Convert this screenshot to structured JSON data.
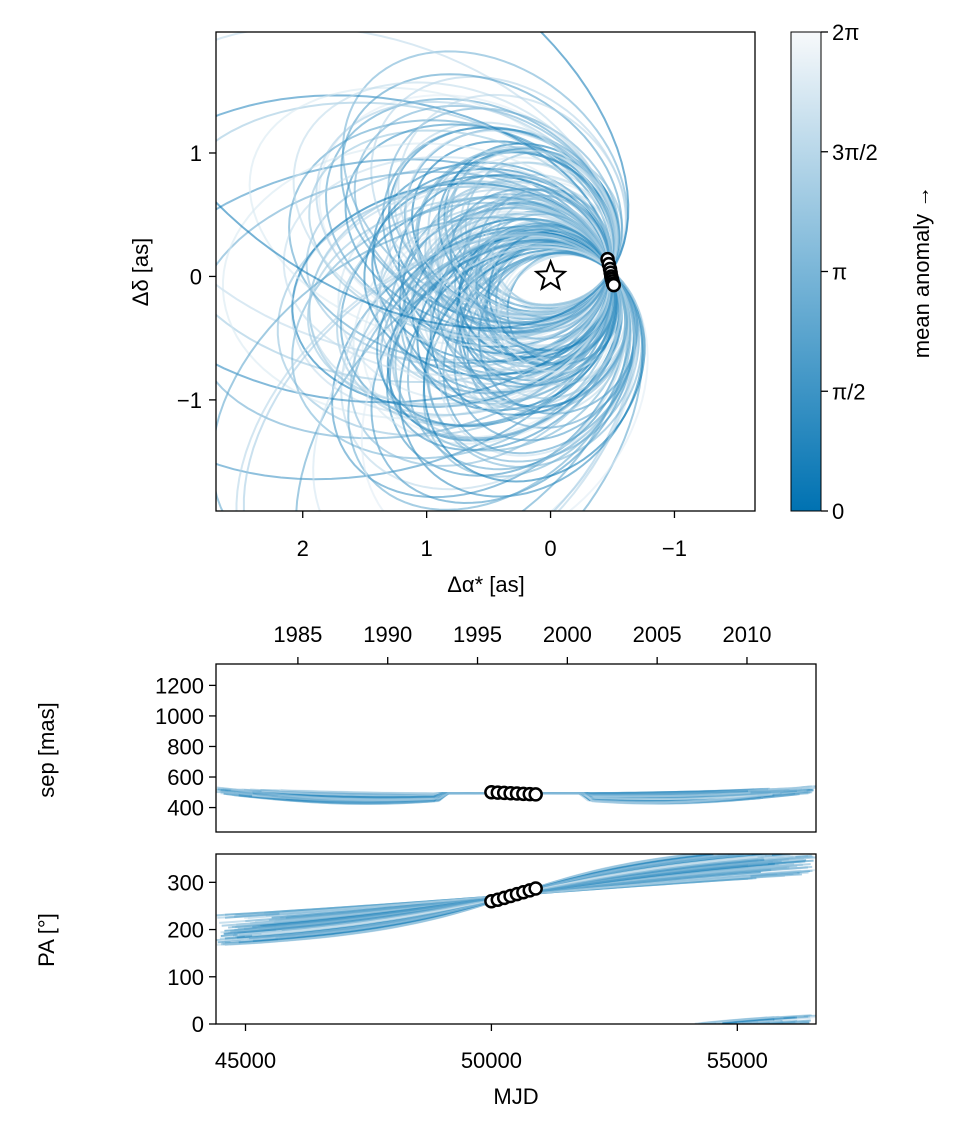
{
  "chart_data": [
    {
      "type": "line",
      "panel": "sky-orbit",
      "xlabel": "Δα* [as]",
      "ylabel": "Δδ [as]",
      "xlim": [
        2.7,
        -1.65
      ],
      "ylim": [
        -1.9,
        1.98
      ],
      "x_ticks": [
        2,
        1,
        0,
        -1
      ],
      "x_tick_labels": [
        "2",
        "1",
        "0",
        "−1"
      ],
      "y_ticks": [
        1,
        0,
        -1
      ],
      "y_tick_labels": [
        "1",
        "0",
        "−1"
      ],
      "star": {
        "x": 0,
        "y": 0,
        "marker": "star"
      },
      "observations": {
        "x": [
          -0.46,
          -0.47,
          -0.48,
          -0.485,
          -0.49,
          -0.495,
          -0.5,
          -0.505,
          -0.51
        ],
        "y": [
          0.14,
          0.1,
          0.06,
          0.03,
          0.0,
          -0.02,
          -0.04,
          -0.06,
          -0.07
        ]
      },
      "series_count": 150,
      "note": "Posterior orbit draws, colored by mean anomaly; all pass through the observed points near Δα*≈-0.5, Δδ≈0"
    },
    {
      "type": "line",
      "panel": "separation",
      "ylabel": "sep [mas]",
      "xlim": [
        44400,
        56600
      ],
      "ylim": [
        240,
        1340
      ],
      "y_ticks": [
        400,
        600,
        800,
        1000,
        1200
      ],
      "y_tick_labels": [
        "400",
        "600",
        "800",
        "1000",
        "1200"
      ],
      "top_axis_ticks": [
        1985,
        1990,
        1995,
        2000,
        2005,
        2010
      ],
      "top_axis_tick_labels": [
        "1985",
        "1990",
        "1995",
        "2000",
        "2005",
        "2010"
      ],
      "observations": {
        "mjd": [
          50000,
          50130,
          50260,
          50390,
          50520,
          50650,
          50780,
          50900
        ],
        "sep": [
          500,
          498,
          496,
          494,
          492,
          490,
          488,
          486
        ]
      }
    },
    {
      "type": "line",
      "panel": "position-angle",
      "xlabel": "MJD",
      "ylabel": "PA [°]",
      "xlim": [
        44400,
        56600
      ],
      "ylim": [
        0,
        360
      ],
      "x_ticks": [
        45000,
        50000,
        55000
      ],
      "x_tick_labels": [
        "45000",
        "50000",
        "55000"
      ],
      "y_ticks": [
        0,
        100,
        200,
        300
      ],
      "y_tick_labels": [
        "0",
        "100",
        "200",
        "300"
      ],
      "observations": {
        "mjd": [
          50000,
          50130,
          50260,
          50390,
          50520,
          50650,
          50780,
          50900
        ],
        "pa": [
          260,
          263,
          267,
          271,
          275,
          279,
          283,
          287
        ]
      }
    }
  ],
  "colorbar": {
    "label": "mean anomaly →",
    "range": [
      0,
      6.2832
    ],
    "ticks": [
      0,
      1.5708,
      3.1416,
      4.7124,
      6.2832
    ],
    "tick_labels": [
      "0",
      "π/2",
      "π",
      "3π/2",
      "2π"
    ],
    "color_low": "#0072b2",
    "color_high": "#f7f9fb"
  }
}
